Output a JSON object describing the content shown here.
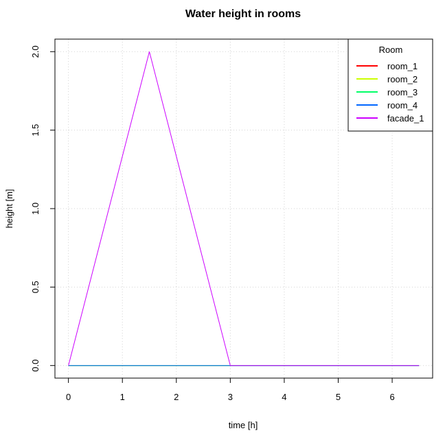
{
  "chart_data": {
    "type": "line",
    "title": "Water height in rooms",
    "xlabel": "time [h]",
    "ylabel": "height [m]",
    "xlim": [
      -0.25,
      6.75
    ],
    "ylim": [
      -0.08,
      2.08
    ],
    "x_ticks": [
      "0",
      "1",
      "2",
      "3",
      "4",
      "5",
      "6"
    ],
    "y_ticks": [
      "0.0",
      "0.5",
      "1.0",
      "1.5",
      "2.0"
    ],
    "grid": true,
    "legend": {
      "title": "Room",
      "position": "top-right"
    },
    "series": [
      {
        "name": "room_1",
        "color": "#ff0000",
        "x": [
          0,
          1.5,
          3,
          6.5
        ],
        "y": [
          0,
          0,
          0,
          0
        ]
      },
      {
        "name": "room_2",
        "color": "#ccff00",
        "x": [
          0,
          1.5,
          3,
          6.5
        ],
        "y": [
          0,
          0,
          0,
          0
        ]
      },
      {
        "name": "room_3",
        "color": "#00ff66",
        "x": [
          0,
          1.5,
          3,
          6.5
        ],
        "y": [
          0,
          0,
          0,
          0
        ]
      },
      {
        "name": "room_4",
        "color": "#0066ff",
        "x": [
          0,
          1.5,
          3,
          6.5
        ],
        "y": [
          0,
          0,
          0,
          0
        ]
      },
      {
        "name": "facade_1",
        "color": "#cc00ff",
        "x": [
          0,
          1.5,
          3,
          6.5
        ],
        "y": [
          0,
          2,
          0,
          0
        ]
      }
    ]
  }
}
